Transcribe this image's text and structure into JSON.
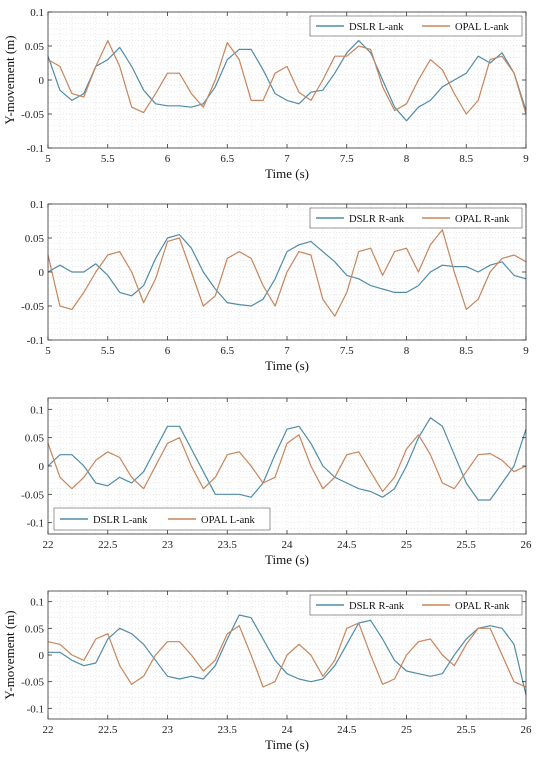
{
  "colors": {
    "dslr": "#4f8ca8",
    "opal": "#c8855a",
    "grid": "#d4d4d4",
    "axis": "#333333"
  },
  "chart_data": [
    {
      "type": "line",
      "xlabel": "Time (s)",
      "ylabel": "Y-movement (m)",
      "xlim": [
        5,
        9
      ],
      "ylim": [
        -0.1,
        0.1
      ],
      "xticks": [
        5,
        5.5,
        6,
        6.5,
        7,
        7.5,
        8,
        8.5,
        9
      ],
      "xtick_labels": [
        "5",
        "5.5",
        "6",
        "6.5",
        "7",
        "7.5",
        "8",
        "8.5",
        "9"
      ],
      "yticks": [
        -0.1,
        -0.05,
        0,
        0.05,
        0.1
      ],
      "ytick_labels": [
        "-0.1",
        "-0.05",
        "0",
        "0.05",
        "0.1"
      ],
      "grid": true,
      "legend_position": "top-right",
      "series": [
        {
          "name": "DSLR L-ank",
          "color": "dslr",
          "x": [
            5,
            5.1,
            5.2,
            5.3,
            5.4,
            5.5,
            5.6,
            5.7,
            5.8,
            5.9,
            6,
            6.1,
            6.2,
            6.3,
            6.4,
            6.5,
            6.6,
            6.7,
            6.8,
            6.9,
            7,
            7.1,
            7.2,
            7.3,
            7.4,
            7.5,
            7.6,
            7.7,
            7.8,
            7.9,
            8,
            8.1,
            8.2,
            8.3,
            8.4,
            8.5,
            8.6,
            8.7,
            8.8,
            8.9,
            9
          ],
          "y": [
            0.035,
            -0.015,
            -0.03,
            -0.02,
            0.02,
            0.03,
            0.048,
            0.02,
            -0.015,
            -0.035,
            -0.038,
            -0.038,
            -0.04,
            -0.035,
            -0.01,
            0.03,
            0.045,
            0.045,
            0.015,
            -0.02,
            -0.03,
            -0.035,
            -0.018,
            -0.015,
            0.01,
            0.04,
            0.058,
            0.04,
            0.0,
            -0.04,
            -0.06,
            -0.04,
            -0.03,
            -0.01,
            0.0,
            0.01,
            0.035,
            0.025,
            0.04,
            0.01,
            -0.045
          ]
        },
        {
          "name": "OPAL L-ank",
          "color": "opal",
          "x": [
            5,
            5.1,
            5.2,
            5.3,
            5.4,
            5.5,
            5.6,
            5.7,
            5.8,
            5.9,
            6,
            6.1,
            6.2,
            6.3,
            6.4,
            6.5,
            6.6,
            6.7,
            6.8,
            6.9,
            7,
            7.1,
            7.2,
            7.3,
            7.4,
            7.5,
            7.6,
            7.7,
            7.8,
            7.9,
            8,
            8.1,
            8.2,
            8.3,
            8.4,
            8.5,
            8.6,
            8.7,
            8.8,
            8.9,
            9
          ],
          "y": [
            0.03,
            0.02,
            -0.02,
            -0.025,
            0.02,
            0.058,
            0.02,
            -0.04,
            -0.048,
            -0.02,
            0.01,
            0.01,
            -0.02,
            -0.04,
            0.0,
            0.055,
            0.03,
            -0.03,
            -0.03,
            0.01,
            0.02,
            -0.018,
            -0.03,
            0.0,
            0.035,
            0.035,
            0.05,
            0.045,
            -0.01,
            -0.045,
            -0.035,
            0.0,
            0.03,
            0.015,
            -0.02,
            -0.05,
            -0.03,
            0.03,
            0.035,
            0.01,
            -0.05
          ]
        }
      ]
    },
    {
      "type": "line",
      "xlabel": "Time (s)",
      "ylabel": "",
      "xlim": [
        5,
        9
      ],
      "ylim": [
        -0.1,
        0.1
      ],
      "xticks": [
        5,
        5.5,
        6,
        6.5,
        7,
        7.5,
        8,
        8.5,
        9
      ],
      "xtick_labels": [
        "5",
        "5.5",
        "6",
        "6.5",
        "7",
        "7.5",
        "8",
        "8.5",
        "9"
      ],
      "yticks": [
        -0.1,
        -0.05,
        0,
        0.05,
        0.1
      ],
      "ytick_labels": [
        "-0.1",
        "-0.05",
        "0",
        "0.05",
        "0.1"
      ],
      "grid": true,
      "legend_position": "top-right",
      "series": [
        {
          "name": "DSLR R-ank",
          "color": "dslr",
          "x": [
            5,
            5.1,
            5.2,
            5.3,
            5.4,
            5.5,
            5.6,
            5.7,
            5.8,
            5.9,
            6,
            6.1,
            6.2,
            6.3,
            6.4,
            6.5,
            6.6,
            6.7,
            6.8,
            6.9,
            7,
            7.1,
            7.2,
            7.3,
            7.4,
            7.5,
            7.6,
            7.7,
            7.8,
            7.9,
            8,
            8.1,
            8.2,
            8.3,
            8.4,
            8.5,
            8.6,
            8.7,
            8.8,
            8.9,
            9
          ],
          "y": [
            0.0,
            0.01,
            0.0,
            0.0,
            0.012,
            -0.005,
            -0.03,
            -0.035,
            -0.02,
            0.02,
            0.05,
            0.055,
            0.035,
            0.0,
            -0.025,
            -0.045,
            -0.048,
            -0.05,
            -0.04,
            -0.01,
            0.03,
            0.04,
            0.045,
            0.03,
            0.015,
            -0.005,
            -0.01,
            -0.02,
            -0.025,
            -0.03,
            -0.03,
            -0.02,
            0.0,
            0.01,
            0.008,
            0.008,
            0.0,
            0.01,
            0.015,
            -0.005,
            -0.01
          ]
        },
        {
          "name": "OPAL R-ank",
          "color": "opal",
          "x": [
            5,
            5.1,
            5.2,
            5.3,
            5.4,
            5.5,
            5.6,
            5.7,
            5.8,
            5.9,
            6,
            6.1,
            6.2,
            6.3,
            6.4,
            6.5,
            6.6,
            6.7,
            6.8,
            6.9,
            7,
            7.1,
            7.2,
            7.3,
            7.4,
            7.5,
            7.6,
            7.7,
            7.8,
            7.9,
            8,
            8.1,
            8.2,
            8.3,
            8.4,
            8.5,
            8.6,
            8.7,
            8.8,
            8.9,
            9
          ],
          "y": [
            0.025,
            -0.05,
            -0.055,
            -0.03,
            0.0,
            0.025,
            0.03,
            0.0,
            -0.045,
            -0.01,
            0.045,
            0.05,
            0.0,
            -0.05,
            -0.035,
            0.02,
            0.03,
            0.02,
            -0.02,
            -0.05,
            0.0,
            0.03,
            0.025,
            -0.04,
            -0.065,
            -0.03,
            0.03,
            0.035,
            -0.005,
            0.03,
            0.035,
            0.0,
            0.04,
            0.062,
            0.0,
            -0.055,
            -0.04,
            0.0,
            0.02,
            0.025,
            0.015
          ]
        }
      ]
    },
    {
      "type": "line",
      "xlabel": "Time (s)",
      "ylabel": "",
      "xlim": [
        22,
        26
      ],
      "ylim": [
        -0.12,
        0.12
      ],
      "xticks": [
        22,
        22.5,
        23,
        23.5,
        24,
        24.5,
        25,
        25.5,
        26
      ],
      "xtick_labels": [
        "22",
        "22.5",
        "23",
        "23.5",
        "24",
        "24.5",
        "25",
        "25.5",
        "26"
      ],
      "yticks": [
        -0.1,
        -0.05,
        0,
        0.05,
        0.1
      ],
      "ytick_labels": [
        "-0.1",
        "-0.05",
        "0",
        "0.05",
        "0.1"
      ],
      "grid": true,
      "legend_position": "bottom-left",
      "series": [
        {
          "name": "DSLR L-ank",
          "color": "dslr",
          "x": [
            22,
            22.1,
            22.2,
            22.3,
            22.4,
            22.5,
            22.6,
            22.7,
            22.8,
            22.9,
            23,
            23.1,
            23.2,
            23.3,
            23.4,
            23.5,
            23.6,
            23.7,
            23.8,
            23.9,
            24,
            24.1,
            24.2,
            24.3,
            24.4,
            24.5,
            24.6,
            24.7,
            24.8,
            24.9,
            25,
            25.1,
            25.2,
            25.3,
            25.4,
            25.5,
            25.6,
            25.7,
            25.8,
            25.9,
            26
          ],
          "y": [
            0.0,
            0.02,
            0.02,
            0.0,
            -0.03,
            -0.035,
            -0.02,
            -0.03,
            -0.01,
            0.03,
            0.07,
            0.07,
            0.03,
            -0.01,
            -0.05,
            -0.05,
            -0.05,
            -0.055,
            -0.03,
            0.02,
            0.065,
            0.07,
            0.04,
            0.0,
            -0.02,
            -0.03,
            -0.04,
            -0.045,
            -0.055,
            -0.04,
            0.0,
            0.05,
            0.085,
            0.07,
            0.02,
            -0.03,
            -0.06,
            -0.06,
            -0.03,
            0.0,
            0.065
          ]
        },
        {
          "name": "OPAL L-ank",
          "color": "opal",
          "x": [
            22,
            22.1,
            22.2,
            22.3,
            22.4,
            22.5,
            22.6,
            22.7,
            22.8,
            22.9,
            23,
            23.1,
            23.2,
            23.3,
            23.4,
            23.5,
            23.6,
            23.7,
            23.8,
            23.9,
            24,
            24.1,
            24.2,
            24.3,
            24.4,
            24.5,
            24.6,
            24.7,
            24.8,
            24.9,
            25,
            25.1,
            25.2,
            25.3,
            25.4,
            25.5,
            25.6,
            25.7,
            25.8,
            25.9,
            26
          ],
          "y": [
            0.04,
            -0.02,
            -0.04,
            -0.02,
            0.01,
            0.025,
            0.015,
            -0.02,
            -0.04,
            0.0,
            0.04,
            0.05,
            0.0,
            -0.04,
            -0.02,
            0.02,
            0.025,
            0.0,
            -0.03,
            -0.02,
            0.04,
            0.055,
            0.0,
            -0.04,
            -0.02,
            0.02,
            0.025,
            -0.01,
            -0.045,
            -0.02,
            0.03,
            0.055,
            0.02,
            -0.03,
            -0.04,
            -0.01,
            0.02,
            0.022,
            0.01,
            -0.01,
            0.0
          ]
        }
      ]
    },
    {
      "type": "line",
      "xlabel": "Time (s)",
      "ylabel": "Y-movement (m)",
      "xlim": [
        22,
        26
      ],
      "ylim": [
        -0.12,
        0.12
      ],
      "xticks": [
        22,
        22.5,
        23,
        23.5,
        24,
        24.5,
        25,
        25.5,
        26
      ],
      "xtick_labels": [
        "22",
        "22.5",
        "23",
        "23.5",
        "24",
        "24.5",
        "25",
        "25.5",
        "26"
      ],
      "yticks": [
        -0.1,
        -0.05,
        0,
        0.05,
        0.1
      ],
      "ytick_labels": [
        "-0.1",
        "-0.05",
        "0",
        "0.05",
        "0.1"
      ],
      "grid": true,
      "legend_position": "top-right",
      "series": [
        {
          "name": "DSLR R-ank",
          "color": "dslr",
          "x": [
            22,
            22.1,
            22.2,
            22.3,
            22.4,
            22.5,
            22.6,
            22.7,
            22.8,
            22.9,
            23,
            23.1,
            23.2,
            23.3,
            23.4,
            23.5,
            23.6,
            23.7,
            23.8,
            23.9,
            24,
            24.1,
            24.2,
            24.3,
            24.4,
            24.5,
            24.6,
            24.7,
            24.8,
            24.9,
            25,
            25.1,
            25.2,
            25.3,
            25.4,
            25.5,
            25.6,
            25.7,
            25.8,
            25.9,
            26
          ],
          "y": [
            0.005,
            0.005,
            -0.01,
            -0.02,
            -0.015,
            0.03,
            0.05,
            0.04,
            0.02,
            -0.01,
            -0.04,
            -0.045,
            -0.04,
            -0.045,
            -0.02,
            0.03,
            0.075,
            0.07,
            0.03,
            -0.01,
            -0.035,
            -0.045,
            -0.05,
            -0.045,
            -0.02,
            0.02,
            0.06,
            0.065,
            0.03,
            -0.01,
            -0.03,
            -0.035,
            -0.04,
            -0.035,
            0.0,
            0.03,
            0.05,
            0.055,
            0.05,
            0.02,
            -0.075
          ]
        },
        {
          "name": "OPAL R-ank",
          "color": "opal",
          "x": [
            22,
            22.1,
            22.2,
            22.3,
            22.4,
            22.5,
            22.6,
            22.7,
            22.8,
            22.9,
            23,
            23.1,
            23.2,
            23.3,
            23.4,
            23.5,
            23.6,
            23.7,
            23.8,
            23.9,
            24,
            24.1,
            24.2,
            24.3,
            24.4,
            24.5,
            24.6,
            24.7,
            24.8,
            24.9,
            25,
            25.1,
            25.2,
            25.3,
            25.4,
            25.5,
            25.6,
            25.7,
            25.8,
            25.9,
            26
          ],
          "y": [
            0.025,
            0.02,
            0.0,
            -0.01,
            0.03,
            0.04,
            -0.02,
            -0.055,
            -0.04,
            0.0,
            0.025,
            0.025,
            0.0,
            -0.03,
            -0.01,
            0.04,
            0.055,
            0.0,
            -0.06,
            -0.05,
            0.0,
            0.02,
            0.0,
            -0.04,
            -0.01,
            0.05,
            0.06,
            0.0,
            -0.055,
            -0.045,
            0.0,
            0.025,
            0.03,
            0.0,
            -0.02,
            0.02,
            0.05,
            0.05,
            0.0,
            -0.05,
            -0.06
          ]
        }
      ]
    }
  ]
}
